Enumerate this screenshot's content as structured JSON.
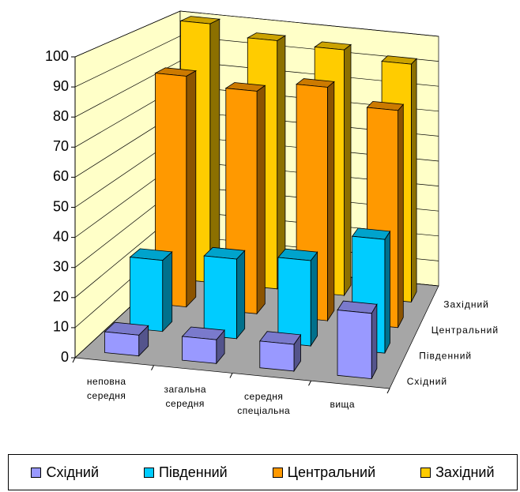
{
  "chart_data": {
    "type": "bar3d",
    "categories": [
      "неповна середня",
      "загальна середня",
      "середня спеціальна",
      "вища"
    ],
    "depth_labels": [
      "Західний",
      "Центральний",
      "Південний",
      "Східний"
    ],
    "series": [
      {
        "name": "Східний",
        "color": "#9999ff",
        "values": [
          7,
          8,
          9,
          22
        ]
      },
      {
        "name": "Південний",
        "color": "#00ccff",
        "values": [
          25,
          28,
          30,
          40
        ]
      },
      {
        "name": "Центральний",
        "color": "#ff9900",
        "values": [
          85,
          82,
          86,
          80
        ]
      },
      {
        "name": "Західний",
        "color": "#ffcc00",
        "values": [
          100,
          96,
          95,
          92
        ]
      }
    ],
    "ylim": [
      0,
      100
    ],
    "yticks": [
      0,
      10,
      20,
      30,
      40,
      50,
      60,
      70,
      80,
      90,
      100
    ],
    "grid": true
  }
}
